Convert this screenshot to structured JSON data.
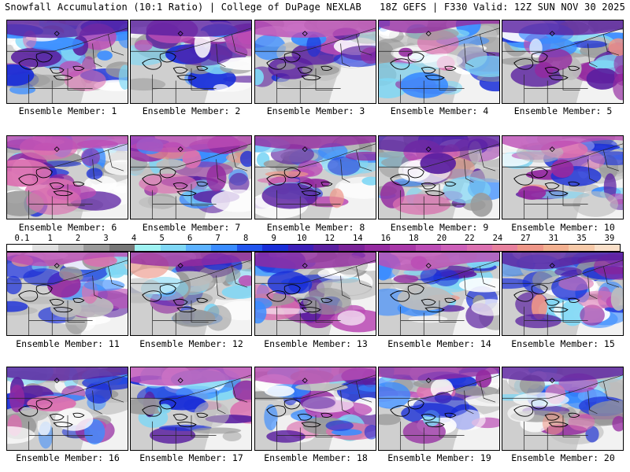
{
  "header": {
    "left_title": "Snowfall Accumulation (10:1 Ratio) | College of DuPage NEXLAB",
    "right_title": "18Z GEFS | F330 Valid: 12Z SUN NOV 30 2025"
  },
  "colorbar": {
    "labels": [
      "0.1",
      "1",
      "2",
      "3",
      "4",
      "5",
      "6",
      "7",
      "8",
      "9",
      "10",
      "12",
      "14",
      "16",
      "18",
      "20",
      "22",
      "24",
      "27",
      "31",
      "35",
      "39"
    ],
    "colors": [
      "#ffffff",
      "#e0e0e0",
      "#bdbdbd",
      "#9a9a9a",
      "#777777",
      "#9ff2f2",
      "#7fd7f5",
      "#5cb2ff",
      "#3a8cff",
      "#2255ee",
      "#1a2fd8",
      "#3d1fb8",
      "#5a1fa0",
      "#7a2398",
      "#942aa0",
      "#a838a8",
      "#bb4cb5",
      "#cc5fb8",
      "#db70b0",
      "#e7809d",
      "#ee9688",
      "#f2b090",
      "#f6c9a8",
      "#f9dfc8"
    ]
  },
  "panels": [
    {
      "label": "Ensemble Member: 1"
    },
    {
      "label": "Ensemble Member: 2"
    },
    {
      "label": "Ensemble Member: 3"
    },
    {
      "label": "Ensemble Member: 4"
    },
    {
      "label": "Ensemble Member: 5"
    },
    {
      "label": "Ensemble Member: 6"
    },
    {
      "label": "Ensemble Member: 7"
    },
    {
      "label": "Ensemble Member: 8"
    },
    {
      "label": "Ensemble Member: 9"
    },
    {
      "label": "Ensemble Member: 10"
    },
    {
      "label": "Ensemble Member: 11"
    },
    {
      "label": "Ensemble Member: 12"
    },
    {
      "label": "Ensemble Member: 13"
    },
    {
      "label": "Ensemble Member: 14"
    },
    {
      "label": "Ensemble Member: 15"
    },
    {
      "label": "Ensemble Member: 16"
    },
    {
      "label": "Ensemble Member: 17"
    },
    {
      "label": "Ensemble Member: 18"
    },
    {
      "label": "Ensemble Member: 19"
    },
    {
      "label": "Ensemble Member: 20"
    }
  ]
}
